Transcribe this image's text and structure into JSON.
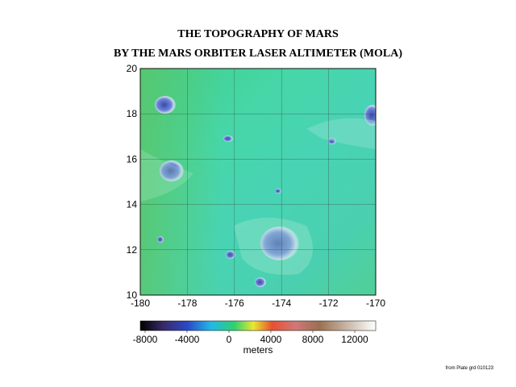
{
  "title_lines": [
    "THE TOPOGRAPHY OF MARS",
    "BY THE MARS ORBITER LASER ALTIMETER (MOLA)"
  ],
  "map": {
    "xlim": [
      -180,
      -170
    ],
    "ylim": [
      10,
      20
    ],
    "xticks": [
      -180,
      -178,
      -176,
      -174,
      -172,
      -170
    ],
    "yticks": [
      10,
      12,
      14,
      16,
      18,
      20
    ],
    "grid": true
  },
  "colorbar": {
    "lim": [
      -8460,
      14000
    ],
    "ticks": [
      -8000,
      -4000,
      0,
      4000,
      8000,
      12000
    ],
    "label": "meters"
  },
  "footnote": "from Plate grd 010123"
}
